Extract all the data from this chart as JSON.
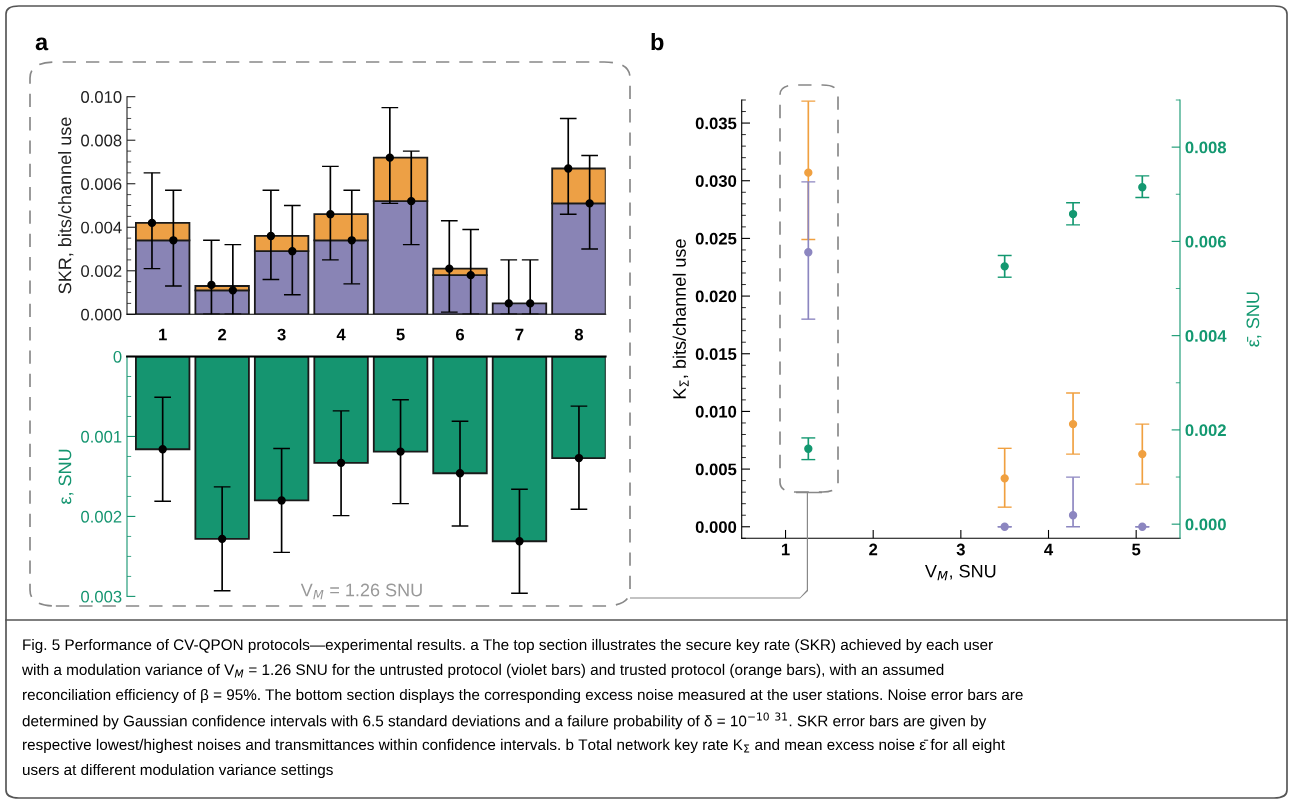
{
  "chart_data": [
    {
      "type": "bar",
      "title": "a",
      "stacked": true,
      "marker": "circle",
      "grid": false,
      "categories": [
        "1",
        "2",
        "3",
        "4",
        "5",
        "6",
        "7",
        "8"
      ],
      "ylabel": "SKR, bits/channel use",
      "ylim": [
        0,
        0.01
      ],
      "yticks": [
        {
          "value": 0,
          "label": "0.000"
        },
        {
          "value": 0.002,
          "label": "0.002"
        },
        {
          "value": 0.004,
          "label": "0.004"
        },
        {
          "value": 0.006,
          "label": "0.006"
        },
        {
          "value": 0.008,
          "label": "0.008"
        },
        {
          "value": 0.01,
          "label": "0.010"
        }
      ],
      "series": [
        {
          "color": "#8984b5",
          "values": [
            0.0034,
            0.0011,
            0.0029,
            0.0034,
            0.0052,
            0.0018,
            0.0005,
            0.0051
          ]
        },
        {
          "color": "#eda045",
          "values": [
            0.0008,
            0.0002,
            0.0007,
            0.0012,
            0.002,
            0.0003,
            0,
            0.0016
          ]
        },
        {
          "type": "scatter",
          "color": "#000000",
          "x": [
            "1",
            "2",
            "3",
            "4",
            "5",
            "6",
            "7",
            "8"
          ],
          "values": [
            0.0042,
            0.00135,
            0.0036,
            0.0046,
            0.0072,
            0.0021,
            0.0005,
            0.0067
          ],
          "errors": [
            [
              0.0021,
              0.0065
            ],
            [
              0,
              0.0034
            ],
            [
              0.0016,
              0.0057
            ],
            [
              0.0025,
              0.0068
            ],
            [
              0.0051,
              0.0095
            ],
            [
              0.0001,
              0.0043
            ],
            [
              0,
              0.0025
            ],
            [
              0.0046,
              0.009
            ]
          ]
        },
        {
          "type": "scatter",
          "color": "#000000",
          "x": [
            "1",
            "2",
            "3",
            "4",
            "5",
            "6",
            "7",
            "8"
          ],
          "values": [
            0.0034,
            0.0011,
            0.0029,
            0.0034,
            0.0052,
            0.0018,
            0.0005,
            0.0051
          ],
          "errors": [
            [
              0.0013,
              0.0057
            ],
            [
              0,
              0.0032
            ],
            [
              0.0009,
              0.005
            ],
            [
              0.0014,
              0.0057
            ],
            [
              0.0032,
              0.0075
            ],
            [
              0,
              0.0039
            ],
            [
              0,
              0.0025
            ],
            [
              0.003,
              0.0073
            ]
          ]
        }
      ]
    },
    {
      "type": "bar",
      "marker": "circle",
      "grid": false,
      "tick_labels": "y",
      "categories": [
        "1",
        "2",
        "3",
        "4",
        "5",
        "6",
        "7",
        "8"
      ],
      "ylabel": "ε, SNU",
      "ylim": [
        0.003,
        0
      ],
      "yticks": [
        0,
        0.001,
        0.002,
        0.003
      ],
      "series": [
        {
          "color": "#159570",
          "values": [
            0.00116,
            0.00228,
            0.0018,
            0.00133,
            0.00119,
            0.00146,
            0.00231,
            0.00127
          ]
        },
        {
          "type": "scatter",
          "color": "#000000",
          "x": [
            "1",
            "2",
            "3",
            "4",
            "5",
            "6",
            "7",
            "8"
          ],
          "values": [
            0.00116,
            0.00228,
            0.0018,
            0.00133,
            0.00119,
            0.00146,
            0.00231,
            0.00127
          ],
          "errors": [
            [
              0.00051,
              0.00181
            ],
            [
              0.00163,
              0.00293
            ],
            [
              0.00115,
              0.00245
            ],
            [
              0.00068,
              0.00199
            ],
            [
              0.00054,
              0.00184
            ],
            [
              0.00081,
              0.00212
            ],
            [
              0.00166,
              0.00296
            ],
            [
              0.00062,
              0.00191
            ]
          ]
        }
      ],
      "annotations": [
        "V$_{M}$ = 1.26 SNU"
      ]
    },
    {
      "type": "scatter",
      "title": "b",
      "marker": "circle",
      "grid": false,
      "xlabel": "V$_{M}$, SNU",
      "ylabel": "K$_{Σ}$, bits/channel use",
      "y2label": "ε̄, SNU",
      "xlim": [
        0.5,
        5.5
      ],
      "xticks": [
        1,
        2,
        3,
        4,
        5
      ],
      "ylim": [
        -0.001,
        0.037
      ],
      "yticks": [
        {
          "value": 0,
          "label": "0.000"
        },
        {
          "value": 0.005,
          "label": "0.005"
        },
        {
          "value": 0.01,
          "label": "0.010"
        },
        {
          "value": 0.015,
          "label": "0.015"
        },
        {
          "value": 0.02,
          "label": "0.020"
        },
        {
          "value": 0.025,
          "label": "0.025"
        },
        {
          "value": 0.03,
          "label": "0.030"
        },
        {
          "value": 0.035,
          "label": "0.035"
        }
      ],
      "y2lim": [
        -0.0003,
        0.009
      ],
      "y2ticks": [
        {
          "value": 0,
          "label": "0.000"
        },
        {
          "value": 0.002,
          "label": "0.002"
        },
        {
          "value": 0.004,
          "label": "0.004"
        },
        {
          "value": 0.006,
          "label": "0.006"
        },
        {
          "value": 0.008,
          "label": "0.008"
        }
      ],
      "series": [
        {
          "color": "#f0a040",
          "x": [
            1.26,
            3.5,
            4.28,
            5.07
          ],
          "values": [
            0.0307,
            0.0042,
            0.0089,
            0.0063
          ],
          "errors": [
            [
              0.0249,
              0.0369
            ],
            [
              0.0017,
              0.0068
            ],
            [
              0.0063,
              0.0116
            ],
            [
              0.0037,
              0.0089
            ]
          ]
        },
        {
          "color": "#8c86c0",
          "x": [
            1.26,
            3.5,
            4.28,
            5.07
          ],
          "values": [
            0.0238,
            0,
            0.001,
            0
          ],
          "errors": [
            [
              0.018,
              0.0299
            ],
            null,
            [
              0,
              0.0043
            ],
            null
          ]
        },
        {
          "color": "#139870",
          "axis": "y2",
          "x": [
            1.26,
            3.5,
            4.28,
            5.07
          ],
          "values": [
            0.0016,
            0.00547,
            0.00658,
            0.00715
          ],
          "errors": [
            [
              0.00137,
              0.00183
            ],
            [
              0.00524,
              0.0057
            ],
            [
              0.00635,
              0.00682
            ],
            [
              0.00693,
              0.00739
            ]
          ]
        }
      ],
      "annotations": [
        "Fig. 5 Performance of CV-QPON protocols—experimental results. a The top section illustrates the secure key rate (SKR) achieved by each user",
        "with a modulation variance of V$_{M}$ = 1.26 SNU for the untrusted protocol (violet bars) and trusted protocol (orange bars), with an assumed",
        "reconciliation efficiency of β = 95%. The bottom section displays the corresponding excess noise measured at the user stations. Noise error bars are",
        "determined by Gaussian confidence intervals with 6.5 standard deviations and a failure probability of δ = 10$^{−10}$ $^{31}$. SKR error bars are given by",
        "respective lowest/highest noises and transmittances within confidence intervals. b Total network key rate K$_{Σ}$ and mean excess noise ε̄ for all eight",
        "users at different modulation variance settings"
      ]
    }
  ]
}
